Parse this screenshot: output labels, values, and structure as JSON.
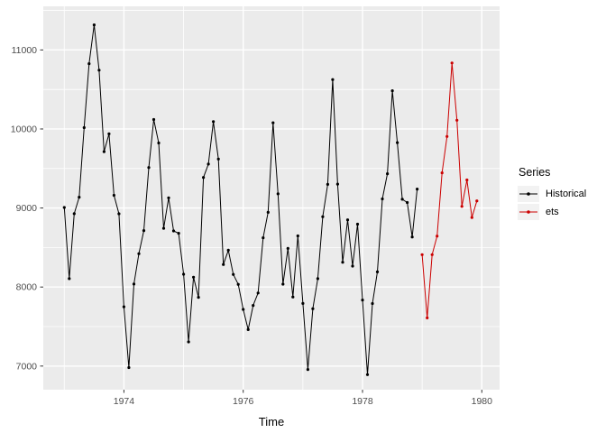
{
  "chart_data": {
    "type": "line",
    "title": "",
    "xlabel": "Time",
    "ylabel": "",
    "legend_title": "Series",
    "legend_position": "right",
    "grid": true,
    "panel_bg": "#EBEBEB",
    "gridline_color": "#FFFFFF",
    "tick_color": "#333333",
    "tick_label_color": "#4D4D4D",
    "xlim": [
      1972.648,
      1980.298
    ],
    "ylim": [
      6701,
      11552
    ],
    "x_major_ticks": [
      1974,
      1976,
      1978,
      1980
    ],
    "x_minor_ticks": [
      1973,
      1975,
      1977,
      1979
    ],
    "y_major_ticks": [
      7000,
      8000,
      9000,
      10000,
      11000
    ],
    "y_minor_ticks": [
      7500,
      8500,
      9500,
      10500,
      11500
    ],
    "series": [
      {
        "name": "Historical",
        "color": "#000000",
        "start_year": 1973,
        "start_month": 1,
        "frequency": 12,
        "values": [
          9007,
          8106,
          8928,
          9137,
          10017,
          10826,
          11317,
          10744,
          9713,
          9938,
          9161,
          8927,
          7750,
          6981,
          8038,
          8422,
          8714,
          9512,
          10120,
          9823,
          8743,
          9129,
          8710,
          8680,
          8162,
          7306,
          8124,
          7870,
          9387,
          9556,
          10093,
          9620,
          8285,
          8466,
          8160,
          8034,
          7717,
          7461,
          7767,
          7925,
          8623,
          8945,
          10078,
          9179,
          8037,
          8488,
          7874,
          8647,
          7792,
          6957,
          7726,
          8106,
          8890,
          9299,
          10625,
          9302,
          8314,
          8850,
          8265,
          8796,
          7836,
          6892,
          7791,
          8192,
          9115,
          9434,
          10484,
          9827,
          9110,
          9070,
          8633,
          9240
        ]
      },
      {
        "name": "ets",
        "color": "#CC0000",
        "start_year": 1979,
        "start_month": 1,
        "frequency": 12,
        "values": [
          8410,
          7610,
          8410,
          8645,
          9445,
          9905,
          10835,
          10110,
          9020,
          9355,
          8880,
          9090
        ]
      }
    ]
  }
}
